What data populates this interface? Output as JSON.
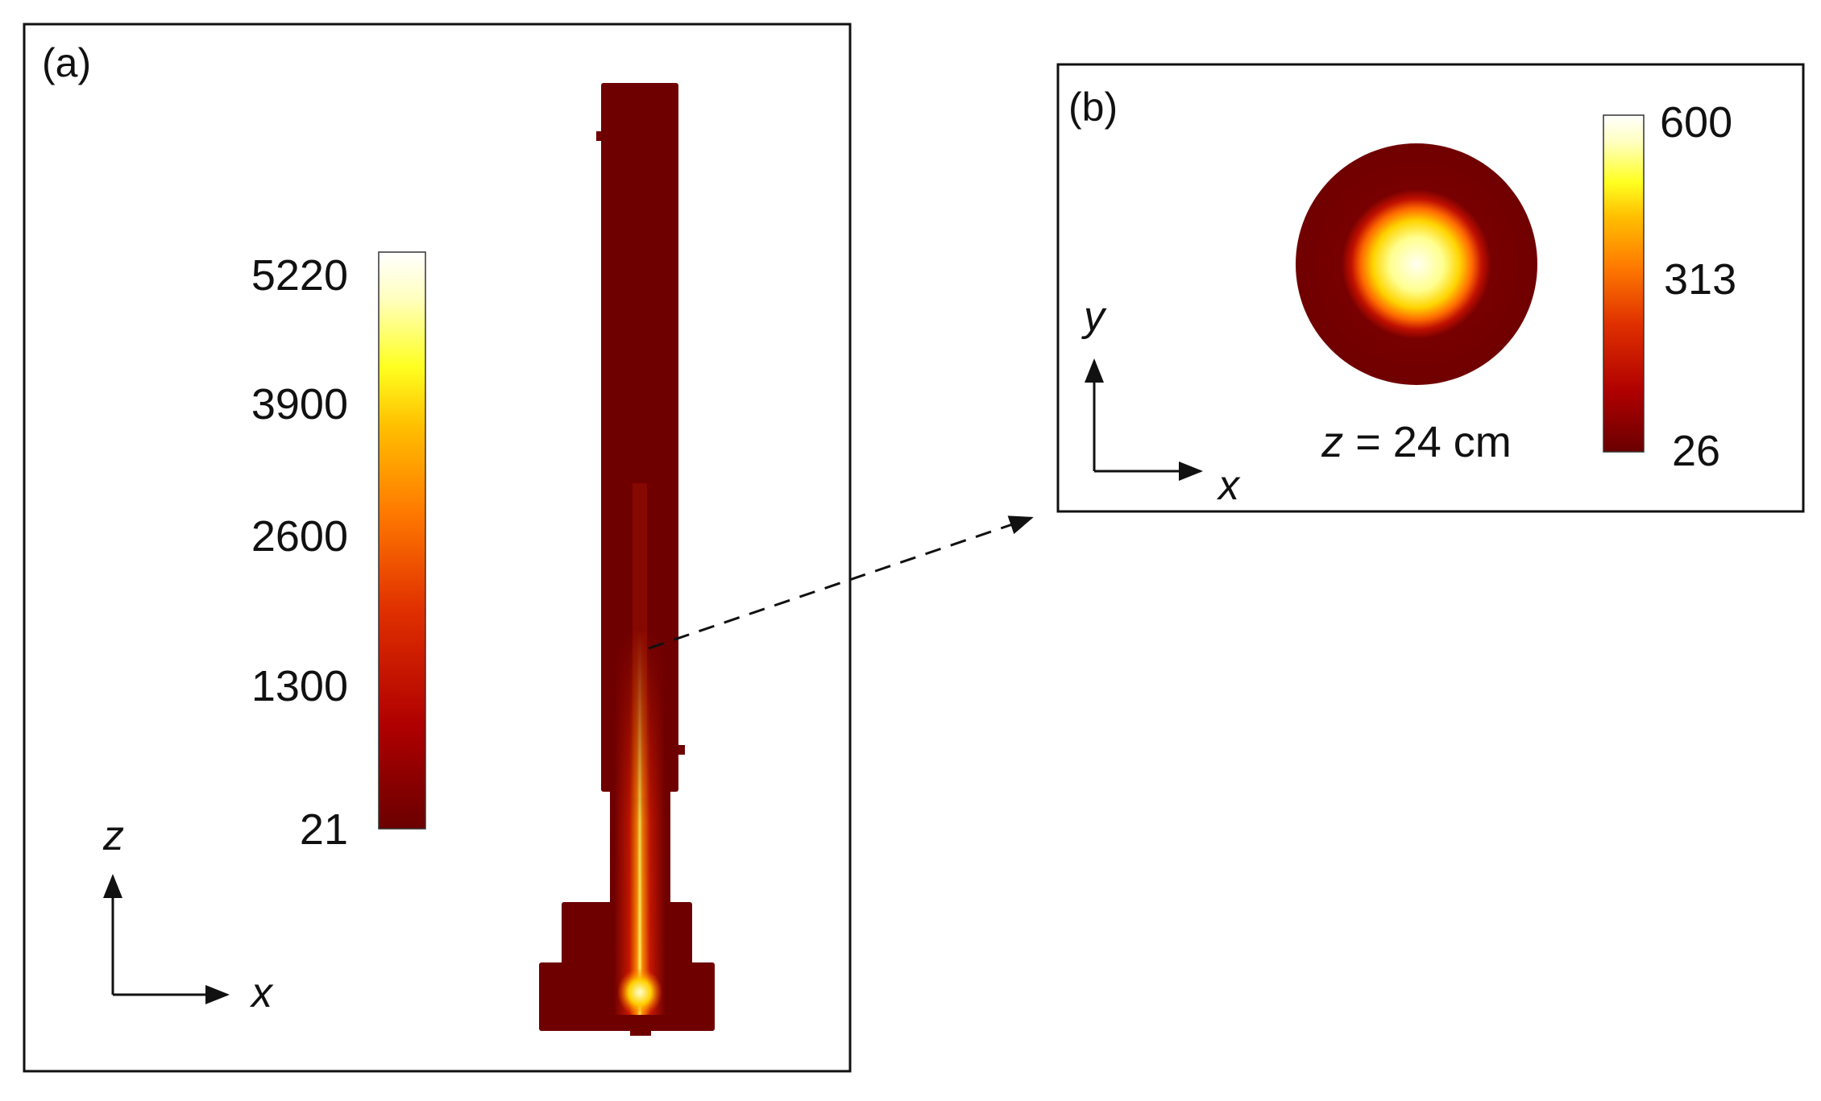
{
  "panel_a": {
    "label": "(a)",
    "colorbar_ticks": [
      "5220",
      "3900",
      "2600",
      "1300",
      "21"
    ],
    "axes": {
      "vertical": "z",
      "horizontal": "x"
    }
  },
  "panel_b": {
    "label": "(b)",
    "colorbar_ticks": [
      "600",
      "313",
      "26"
    ],
    "axes": {
      "vertical": "y",
      "horizontal": "x"
    },
    "caption_var": "z",
    "caption_rest": " = 24 cm"
  },
  "colormap": [
    "#6a0000",
    "#b00000",
    "#e03000",
    "#ff7a00",
    "#ffc000",
    "#ffff20",
    "#ffffc0",
    "#ffffff"
  ],
  "body_color": "#6e0000"
}
